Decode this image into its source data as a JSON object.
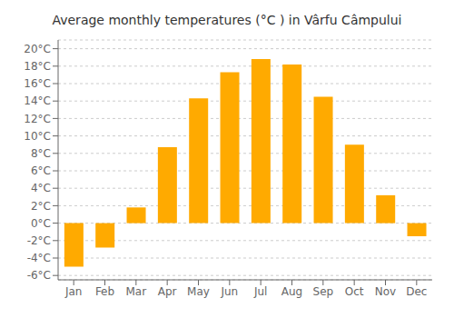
{
  "chart_data": {
    "type": "bar",
    "title": "Average monthly temperatures (°C ) in Vârfu Câmpului",
    "categories": [
      "Jan",
      "Feb",
      "Mar",
      "Apr",
      "May",
      "Jun",
      "Jul",
      "Aug",
      "Sep",
      "Oct",
      "Nov",
      "Dec"
    ],
    "values": [
      -5.0,
      -2.8,
      1.8,
      8.7,
      14.3,
      17.3,
      18.8,
      18.2,
      14.5,
      9.0,
      3.2,
      -1.5
    ],
    "color": "#FFAA00",
    "ylim": [
      -6.5,
      21
    ],
    "yticks": [
      {
        "value": -6,
        "label": "-6°C"
      },
      {
        "value": -4,
        "label": "-4°C"
      },
      {
        "value": -2,
        "label": "-2°C"
      },
      {
        "value": 0,
        "label": "0°C"
      },
      {
        "value": 2,
        "label": "2°C"
      },
      {
        "value": 4,
        "label": "4°C"
      },
      {
        "value": 6,
        "label": "6°C"
      },
      {
        "value": 8,
        "label": "8°C"
      },
      {
        "value": 10,
        "label": "10°C"
      },
      {
        "value": 12,
        "label": "12°C"
      },
      {
        "value": 14,
        "label": "14°C"
      },
      {
        "value": 16,
        "label": "16°C"
      },
      {
        "value": 18,
        "label": "18°C"
      },
      {
        "value": 20,
        "label": "20°C"
      }
    ],
    "grid": true
  }
}
